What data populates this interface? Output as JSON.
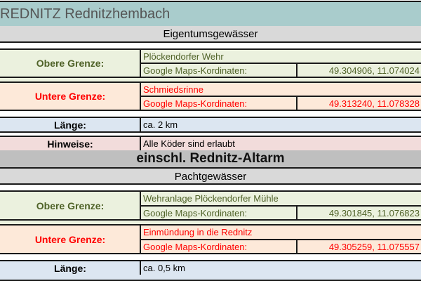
{
  "title": "REDNITZ Rednitzhembach",
  "colors": {
    "title_bg": "#a9cccc",
    "section_bg": "#d9d9d9",
    "altarm_bg": "#bfbfbf",
    "green_bg": "#ebf1de",
    "green_text": "#4f6228",
    "red_bg": "#fde9d9",
    "red_text": "#ff0000",
    "blue_bg": "#dce6f1",
    "pink_bg": "#f2dcdb"
  },
  "sections": [
    {
      "heading": "Eigentumsgewässer",
      "obere": {
        "label": "Obere Grenze:",
        "place": "Plöckendorfer Wehr",
        "coord_label": "Google Maps-Kordinaten:",
        "coords": "49.304906, 11.074024"
      },
      "untere": {
        "label": "Untere Grenze:",
        "place": "Schmiedsrinne",
        "coord_label": "Google Maps-Kordinaten:",
        "coords": "49.313240, 11.078328"
      },
      "laenge": {
        "label": "Länge:",
        "value": "ca. 2 km"
      },
      "hinweise": {
        "label": "Hinweise:",
        "value": "Alle Köder sind erlaubt"
      },
      "note": "einschl. Rednitz-Altarm"
    },
    {
      "heading": "Pachtgewässer",
      "obere": {
        "label": "Obere Grenze:",
        "place": "Wehranlage Plöckendorfer Mühle",
        "coord_label": "Google Maps-Kordinaten:",
        "coords": "49.301845, 11.076823"
      },
      "untere": {
        "label": "Untere Grenze:",
        "place": "Einmündung in die Rednitz",
        "coord_label": "Google Maps-Kordinaten:",
        "coords": "49.305259, 11.075557"
      },
      "laenge": {
        "label": "Länge:",
        "value": "ca. 0,5 km"
      }
    }
  ]
}
